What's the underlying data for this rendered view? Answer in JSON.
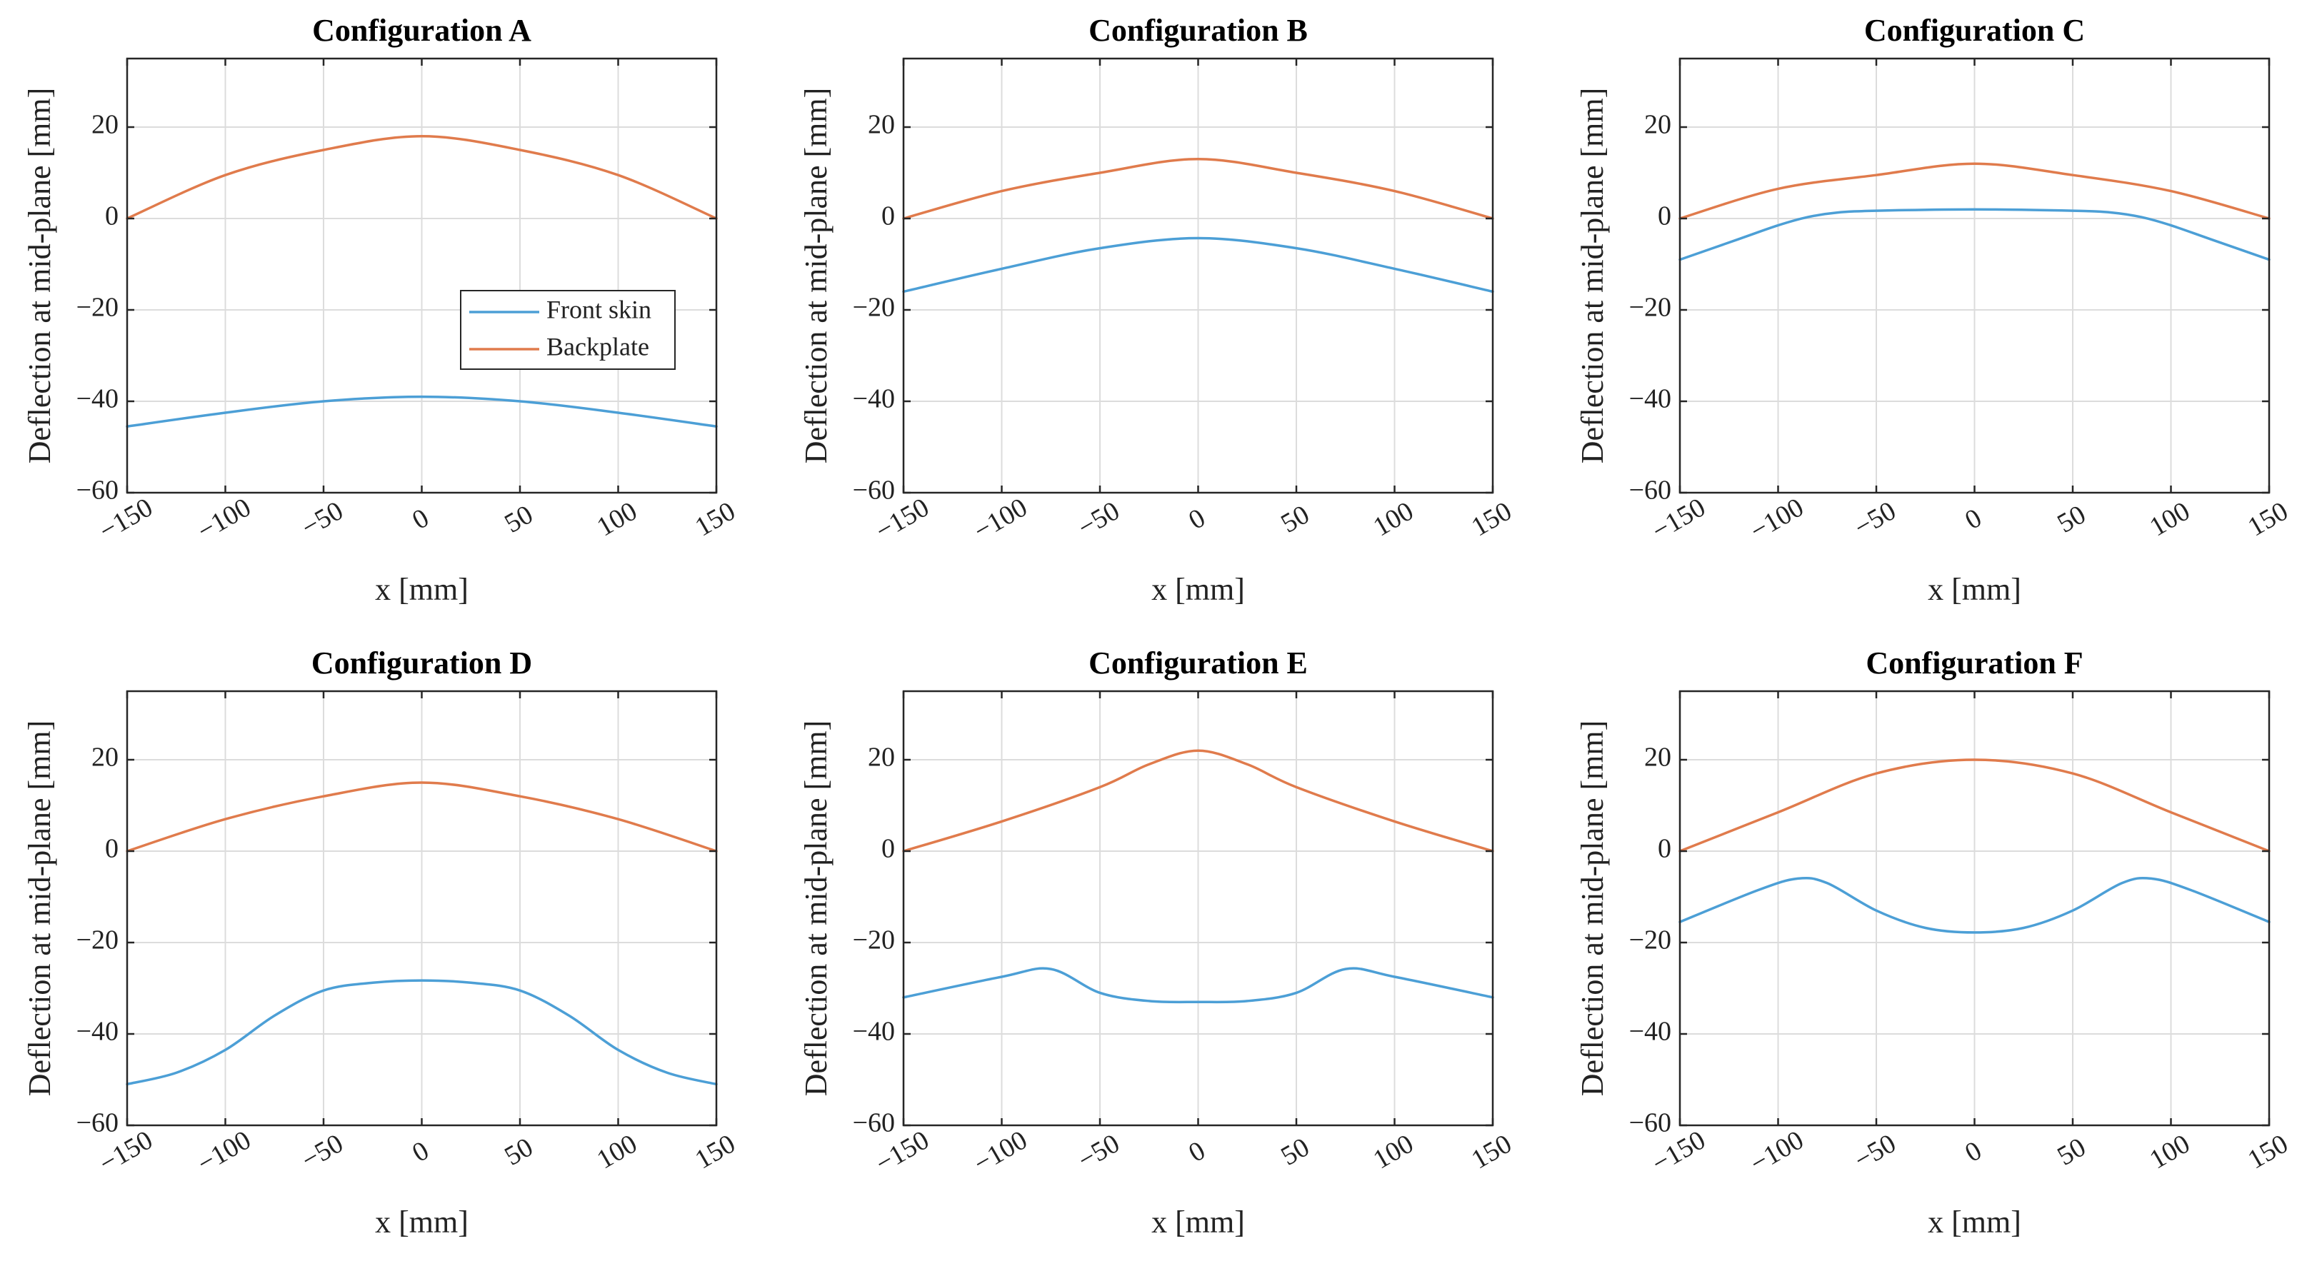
{
  "chart_data": [
    {
      "type": "line",
      "title": "Configuration A",
      "xlabel": "x [mm]",
      "ylabel": "Deflection at mid-plane [mm]",
      "xlim": [
        -150,
        150
      ],
      "ylim": [
        -60,
        35
      ],
      "xticks": [
        -150,
        -100,
        -50,
        0,
        50,
        100,
        150
      ],
      "yticks": [
        -60,
        -40,
        -20,
        0,
        20
      ],
      "grid": true,
      "legend": {
        "placement": "center-right",
        "entries": [
          "Front skin",
          "Backplate"
        ]
      },
      "series": [
        {
          "name": "Front skin",
          "color": "#4c9fd6",
          "x": [
            -150,
            -100,
            -50,
            0,
            50,
            100,
            150
          ],
          "y": [
            -45.5,
            -42.5,
            -40,
            -39,
            -40,
            -42.5,
            -45.5
          ]
        },
        {
          "name": "Backplate",
          "color": "#e07b4c",
          "x": [
            -150,
            -100,
            -50,
            0,
            50,
            100,
            150
          ],
          "y": [
            0,
            9.5,
            15,
            18,
            15,
            9.5,
            0
          ]
        }
      ]
    },
    {
      "type": "line",
      "title": "Configuration B",
      "xlabel": "x [mm]",
      "ylabel": "Deflection at mid-plane [mm]",
      "xlim": [
        -150,
        150
      ],
      "ylim": [
        -60,
        35
      ],
      "xticks": [
        -150,
        -100,
        -50,
        0,
        50,
        100,
        150
      ],
      "yticks": [
        -60,
        -40,
        -20,
        0,
        20
      ],
      "grid": true,
      "series": [
        {
          "name": "Front skin",
          "color": "#4c9fd6",
          "x": [
            -150,
            -100,
            -50,
            0,
            50,
            100,
            150
          ],
          "y": [
            -16,
            -11,
            -6.5,
            -4.3,
            -6.5,
            -11,
            -16
          ]
        },
        {
          "name": "Backplate",
          "color": "#e07b4c",
          "x": [
            -150,
            -100,
            -50,
            0,
            50,
            100,
            150
          ],
          "y": [
            0,
            6,
            10,
            13,
            10,
            6,
            0
          ]
        }
      ]
    },
    {
      "type": "line",
      "title": "Configuration C",
      "xlabel": "x [mm]",
      "ylabel": "Deflection at mid-plane [mm]",
      "xlim": [
        -150,
        150
      ],
      "ylim": [
        -60,
        35
      ],
      "xticks": [
        -150,
        -100,
        -50,
        0,
        50,
        100,
        150
      ],
      "yticks": [
        -60,
        -40,
        -20,
        0,
        20
      ],
      "grid": true,
      "series": [
        {
          "name": "Front skin",
          "color": "#4c9fd6",
          "x": [
            -150,
            -120,
            -100,
            -85,
            -70,
            -50,
            0,
            50,
            70,
            85,
            100,
            120,
            150
          ],
          "y": [
            -9,
            -4.5,
            -1.5,
            0.3,
            1.3,
            1.7,
            2,
            1.7,
            1.3,
            0.3,
            -1.5,
            -4.5,
            -9
          ]
        },
        {
          "name": "Backplate",
          "color": "#e07b4c",
          "x": [
            -150,
            -100,
            -50,
            0,
            50,
            100,
            150
          ],
          "y": [
            0,
            6.5,
            9.5,
            12,
            9.5,
            6,
            0
          ]
        }
      ]
    },
    {
      "type": "line",
      "title": "Configuration D",
      "xlabel": "x [mm]",
      "ylabel": "Deflection at mid-plane [mm]",
      "xlim": [
        -150,
        150
      ],
      "ylim": [
        -60,
        35
      ],
      "xticks": [
        -150,
        -100,
        -50,
        0,
        50,
        100,
        150
      ],
      "yticks": [
        -60,
        -40,
        -20,
        0,
        20
      ],
      "grid": true,
      "series": [
        {
          "name": "Front skin",
          "color": "#4c9fd6",
          "x": [
            -150,
            -125,
            -100,
            -75,
            -50,
            -25,
            0,
            25,
            50,
            75,
            100,
            125,
            150
          ],
          "y": [
            -51,
            -48.5,
            -43.5,
            -36,
            -30.5,
            -28.8,
            -28.3,
            -28.8,
            -30.5,
            -36,
            -43.5,
            -48.5,
            -51
          ]
        },
        {
          "name": "Backplate",
          "color": "#e07b4c",
          "x": [
            -150,
            -100,
            -50,
            0,
            50,
            100,
            150
          ],
          "y": [
            0,
            7,
            12,
            15,
            12,
            7,
            0
          ]
        }
      ]
    },
    {
      "type": "line",
      "title": "Configuration E",
      "xlabel": "x [mm]",
      "ylabel": "Deflection at mid-plane [mm]",
      "xlim": [
        -150,
        150
      ],
      "ylim": [
        -60,
        35
      ],
      "xticks": [
        -150,
        -100,
        -50,
        0,
        50,
        100,
        150
      ],
      "yticks": [
        -60,
        -40,
        -20,
        0,
        20
      ],
      "grid": true,
      "series": [
        {
          "name": "Front skin",
          "color": "#4c9fd6",
          "x": [
            -150,
            -100,
            -75,
            -50,
            -25,
            0,
            25,
            50,
            75,
            100,
            150
          ],
          "y": [
            -32,
            -27.5,
            -25.8,
            -31,
            -32.8,
            -33,
            -32.8,
            -31,
            -25.8,
            -27.5,
            -32
          ]
        },
        {
          "name": "Backplate",
          "color": "#e07b4c",
          "x": [
            -150,
            -100,
            -50,
            -25,
            0,
            25,
            50,
            100,
            150
          ],
          "y": [
            0,
            6.5,
            14,
            19,
            22,
            19,
            14,
            6.5,
            0
          ]
        }
      ]
    },
    {
      "type": "line",
      "title": "Configuration F",
      "xlabel": "x [mm]",
      "ylabel": "Deflection at mid-plane [mm]",
      "xlim": [
        -150,
        150
      ],
      "ylim": [
        -60,
        35
      ],
      "xticks": [
        -150,
        -100,
        -50,
        0,
        50,
        100,
        150
      ],
      "yticks": [
        -60,
        -40,
        -20,
        0,
        20
      ],
      "grid": true,
      "series": [
        {
          "name": "Front skin",
          "color": "#4c9fd6",
          "x": [
            -150,
            -110,
            -90,
            -75,
            -50,
            -25,
            0,
            25,
            50,
            75,
            90,
            110,
            150
          ],
          "y": [
            -15.5,
            -8.5,
            -6,
            -7,
            -13,
            -16.8,
            -17.8,
            -16.8,
            -13,
            -7,
            -6,
            -8.5,
            -15.5
          ]
        },
        {
          "name": "Backplate",
          "color": "#e07b4c",
          "x": [
            -150,
            -100,
            -50,
            0,
            50,
            100,
            150
          ],
          "y": [
            0,
            8.5,
            17,
            20,
            17,
            8.5,
            0
          ]
        }
      ]
    }
  ]
}
